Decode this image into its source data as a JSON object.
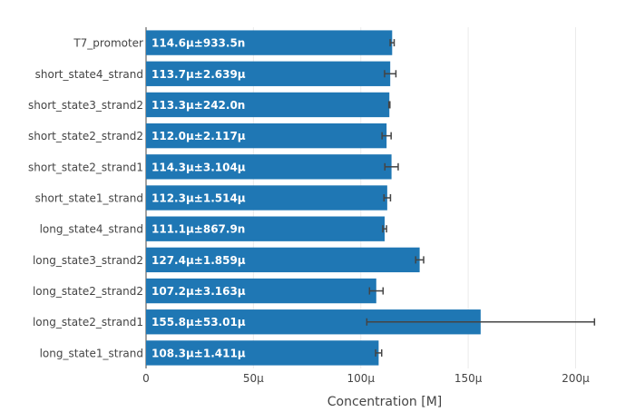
{
  "chart_data": {
    "type": "bar",
    "orientation": "horizontal",
    "title": "",
    "xlabel": "Concentration [M]",
    "ylabel": "",
    "xlim": [
      0,
      215
    ],
    "x_ticks": [
      {
        "value": 0,
        "label": "0"
      },
      {
        "value": 50,
        "label": "50µ"
      },
      {
        "value": 100,
        "label": "100µ"
      },
      {
        "value": 150,
        "label": "150µ"
      },
      {
        "value": 200,
        "label": "200µ"
      }
    ],
    "grid": true,
    "bar_color": "#1f77b4",
    "error_bar_color": "#444444",
    "categories": [
      "T7_promoter",
      "short_state4_strand",
      "short_state3_strand2",
      "short_state2_strand2",
      "short_state2_strand1",
      "short_state1_strand",
      "long_state4_strand",
      "long_state3_strand2",
      "long_state2_strand2",
      "long_state2_strand1",
      "long_state1_strand"
    ],
    "values": [
      114.6,
      113.7,
      113.3,
      112.0,
      114.3,
      112.3,
      111.1,
      127.4,
      107.2,
      155.8,
      108.3
    ],
    "errors": [
      0.9335,
      2.639,
      0.242,
      2.117,
      3.104,
      1.514,
      0.8679,
      1.859,
      3.163,
      53.01,
      1.411
    ],
    "labels": [
      "114.6µ±933.5n",
      "113.7µ±2.639µ",
      "113.3µ±242.0n",
      "112.0µ±2.117µ",
      "114.3µ±3.104µ",
      "112.3µ±1.514µ",
      "111.1µ±867.9n",
      "127.4µ±1.859µ",
      "107.2µ±3.163µ",
      "155.8µ±53.01µ",
      "108.3µ±1.411µ"
    ]
  }
}
